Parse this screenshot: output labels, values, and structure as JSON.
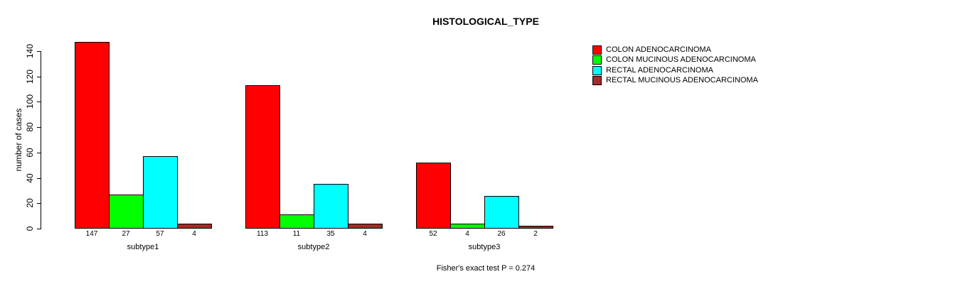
{
  "title": "HISTOLOGICAL_TYPE",
  "annotation": "Fisher's exact test P = 0.274",
  "chart_data": {
    "type": "bar",
    "title": "HISTOLOGICAL_TYPE",
    "xlabel": "",
    "ylabel": "number of cases",
    "categories": [
      "subtype1",
      "subtype2",
      "subtype3"
    ],
    "series": [
      {
        "name": "COLON ADENOCARCINOMA",
        "color": "#ff0000",
        "values": [
          147,
          113,
          52
        ]
      },
      {
        "name": "COLON MUCINOUS ADENOCARCINOMA",
        "color": "#00ff00",
        "values": [
          27,
          11,
          4
        ]
      },
      {
        "name": "RECTAL ADENOCARCINOMA",
        "color": "#00ffff",
        "values": [
          57,
          35,
          26
        ]
      },
      {
        "name": "RECTAL MUCINOUS ADENOCARCINOMA",
        "color": "#a52a2a",
        "values": [
          4,
          4,
          2
        ]
      }
    ],
    "yticks": [
      0,
      20,
      40,
      60,
      80,
      100,
      120,
      140
    ],
    "ylim": [
      0,
      147
    ],
    "grid": false,
    "bar_value_labels": true,
    "legend_position": "top-right",
    "annotation": "Fisher's exact test P = 0.274"
  }
}
